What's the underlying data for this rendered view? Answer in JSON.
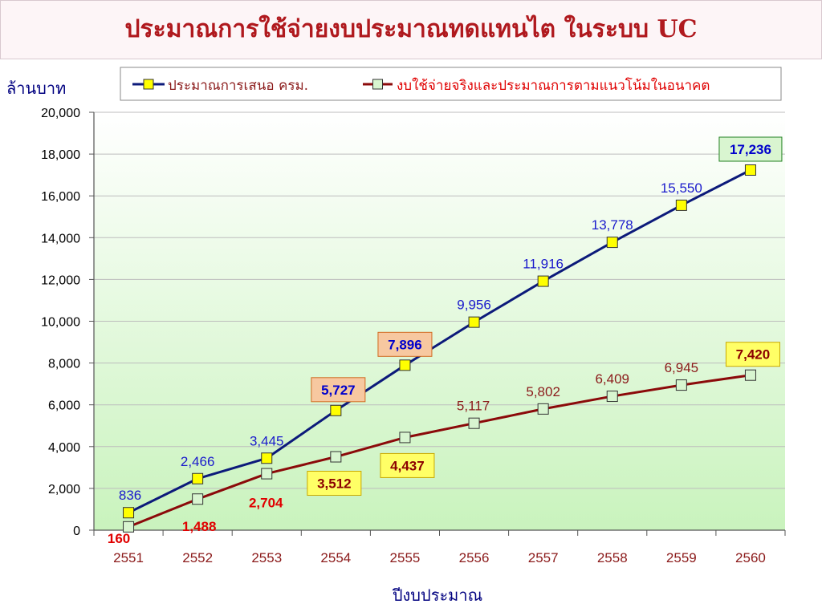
{
  "title": "ประมาณการใช้จ่ายงบประมาณทดแทนไต ในระบบ UC",
  "colors": {
    "series1_line": "#0c1a7a",
    "series1_marker": "#ffff00",
    "series1_label": "#1a1acc",
    "series2_line": "#8b0a0a",
    "series2_marker": "#d8f5d0",
    "series2_label": "#8b1a1a",
    "highlight_red": "#e00000",
    "box_orange": "#f7c8a0",
    "box_yellow": "#ffff66",
    "box_green": "#d9f5d0",
    "tick_text": "#8b1a1a",
    "axis_title": "#000080"
  },
  "chart_data": {
    "type": "line",
    "xlabel": "ปีงบประมาณ",
    "ylabel": "ล้านบาท",
    "categories": [
      "2551",
      "2552",
      "2553",
      "2554",
      "2555",
      "2556",
      "2557",
      "2558",
      "2559",
      "2560"
    ],
    "ylim": [
      0,
      20000
    ],
    "yticks": [
      "0",
      "2,000",
      "4,000",
      "6,000",
      "8,000",
      "10,000",
      "12,000",
      "14,000",
      "16,000",
      "18,000",
      "20,000"
    ],
    "grid": true,
    "legend_position": "top",
    "series": [
      {
        "name": "ประมาณการเสนอ ครม.",
        "values": [
          836,
          2466,
          3445,
          5727,
          7896,
          9956,
          11916,
          13778,
          15550,
          17236
        ],
        "labels": [
          "836",
          "2,466",
          "3,445",
          "5,727",
          "7,896",
          "9,956",
          "11,916",
          "13,778",
          "15,550",
          "17,236"
        ],
        "label_styles": [
          "plain",
          "plain",
          "plain",
          "box-orange",
          "box-orange",
          "plain",
          "plain",
          "plain",
          "plain",
          "box-green"
        ]
      },
      {
        "name": "งบใช้จ่ายจริงและประมาณการตามแนวโน้มในอนาคต",
        "values": [
          160,
          1488,
          2704,
          3512,
          4437,
          5117,
          5802,
          6409,
          6945,
          7420
        ],
        "labels": [
          "160",
          "1,488",
          "2,704",
          "3,512",
          "4,437",
          "5,117",
          "5,802",
          "6,409",
          "6,945",
          "7,420"
        ],
        "label_styles": [
          "bold-red",
          "bold-red",
          "bold-red",
          "box-yellow",
          "box-yellow",
          "plain",
          "plain",
          "plain",
          "plain",
          "box-yellow"
        ]
      }
    ]
  }
}
